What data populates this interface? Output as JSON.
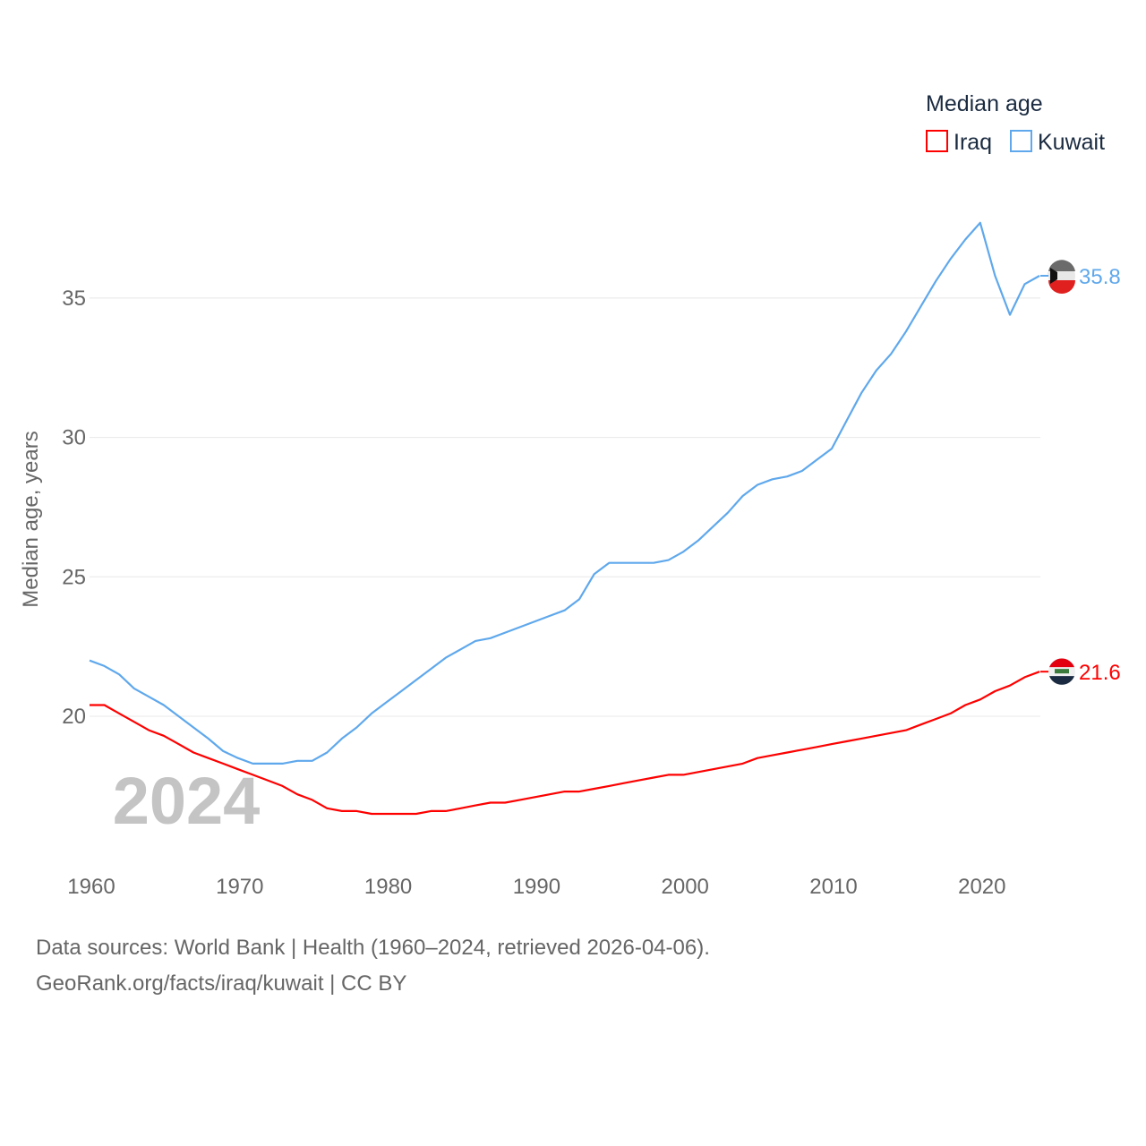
{
  "chart_data": {
    "type": "line",
    "title": "",
    "legend_title": "Median age",
    "legend_position": "top-right",
    "ylabel": "Median age, years",
    "xlabel": "",
    "ylim": [
      15,
      38
    ],
    "xlim": [
      1960,
      2024
    ],
    "yticks": [
      "20",
      "25",
      "30",
      "35"
    ],
    "xticks": [
      "1960",
      "1970",
      "1980",
      "1990",
      "2000",
      "2010",
      "2020"
    ],
    "year_label": "2024",
    "grid": true,
    "x": [
      1960,
      1961,
      1962,
      1963,
      1964,
      1965,
      1966,
      1967,
      1968,
      1969,
      1970,
      1971,
      1972,
      1973,
      1974,
      1975,
      1976,
      1977,
      1978,
      1979,
      1980,
      1981,
      1982,
      1983,
      1984,
      1985,
      1986,
      1987,
      1988,
      1989,
      1990,
      1991,
      1992,
      1993,
      1994,
      1995,
      1996,
      1997,
      1998,
      1999,
      2000,
      2001,
      2002,
      2003,
      2004,
      2005,
      2006,
      2007,
      2008,
      2009,
      2010,
      2011,
      2012,
      2013,
      2014,
      2015,
      2016,
      2017,
      2018,
      2019,
      2020,
      2021,
      2022,
      2023,
      2024
    ],
    "series": [
      {
        "name": "Iraq",
        "color": "#ff0000",
        "end_label": "21.6",
        "values": [
          20.4,
          20.4,
          20.1,
          19.8,
          19.5,
          19.3,
          19.0,
          18.7,
          18.5,
          18.3,
          18.1,
          17.9,
          17.7,
          17.5,
          17.2,
          17.0,
          16.7,
          16.6,
          16.6,
          16.5,
          16.5,
          16.5,
          16.5,
          16.6,
          16.6,
          16.7,
          16.8,
          16.9,
          16.9,
          17.0,
          17.1,
          17.2,
          17.3,
          17.3,
          17.4,
          17.5,
          17.6,
          17.7,
          17.8,
          17.9,
          17.9,
          18.0,
          18.1,
          18.2,
          18.3,
          18.5,
          18.6,
          18.7,
          18.8,
          18.9,
          19.0,
          19.1,
          19.2,
          19.3,
          19.4,
          19.5,
          19.7,
          19.9,
          20.1,
          20.4,
          20.6,
          20.9,
          21.1,
          21.4,
          21.6
        ]
      },
      {
        "name": "Kuwait",
        "color": "#5fa8ec",
        "end_label": "35.8",
        "values": [
          22.0,
          21.8,
          21.5,
          21.0,
          20.7,
          20.4,
          20.0,
          19.6,
          19.2,
          18.75,
          18.5,
          18.3,
          18.3,
          18.3,
          18.4,
          18.4,
          18.7,
          19.2,
          19.6,
          20.1,
          20.5,
          20.9,
          21.3,
          21.7,
          22.1,
          22.4,
          22.7,
          22.8,
          23.0,
          23.2,
          23.4,
          23.6,
          23.8,
          24.2,
          25.1,
          25.5,
          25.5,
          25.5,
          25.5,
          25.6,
          25.9,
          26.3,
          26.8,
          27.3,
          27.9,
          28.3,
          28.5,
          28.6,
          28.8,
          29.2,
          29.6,
          30.6,
          31.6,
          32.4,
          33.0,
          33.8,
          34.7,
          35.6,
          36.4,
          37.1,
          37.7,
          35.8,
          34.4,
          35.5,
          35.8
        ]
      }
    ]
  },
  "footer": {
    "sources": "Data sources: World Bank | Health (1960–2024, retrieved 2026-04-06).",
    "credit": "GeoRank.org/facts/iraq/kuwait | CC BY"
  }
}
